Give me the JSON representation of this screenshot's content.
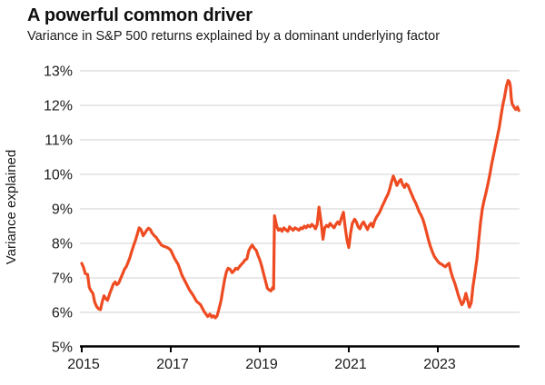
{
  "header": {
    "title": "A powerful common driver",
    "subtitle": "Variance in S&P 500 returns explained by a dominant underlying factor"
  },
  "colors": {
    "line": "#EE4B22",
    "grid": "#d9d9d9",
    "axis": "#000000",
    "text": "#1a1a1a",
    "background": "#ffffff"
  },
  "chart_data": {
    "type": "line",
    "title": "A powerful common driver",
    "subtitle": "Variance in S&P 500 returns explained by a dominant underlying factor",
    "xlabel": "",
    "ylabel": "Variance explained",
    "ylim": [
      5,
      13
    ],
    "xlim": [
      2015,
      2024.85
    ],
    "grid": "horizontal-only",
    "legend": "none",
    "yticks": [
      {
        "value": 5,
        "label": "5%"
      },
      {
        "value": 6,
        "label": "6%"
      },
      {
        "value": 7,
        "label": "7%"
      },
      {
        "value": 8,
        "label": "8%"
      },
      {
        "value": 9,
        "label": "9%"
      },
      {
        "value": 10,
        "label": "10%"
      },
      {
        "value": 11,
        "label": "11%"
      },
      {
        "value": 12,
        "label": "12%"
      },
      {
        "value": 13,
        "label": "13%"
      }
    ],
    "xticks": [
      {
        "value": 2015,
        "label": "2015"
      },
      {
        "value": 2017,
        "label": "2017"
      },
      {
        "value": 2019,
        "label": "2019"
      },
      {
        "value": 2021,
        "label": "2021"
      },
      {
        "value": 2023,
        "label": "2023"
      }
    ],
    "series": [
      {
        "name": "Variance explained by a dominant underlying factor",
        "unit": "%",
        "points": [
          [
            2015.0,
            7.42
          ],
          [
            2015.04,
            7.3
          ],
          [
            2015.08,
            7.12
          ],
          [
            2015.13,
            7.1
          ],
          [
            2015.17,
            6.72
          ],
          [
            2015.21,
            6.62
          ],
          [
            2015.25,
            6.55
          ],
          [
            2015.29,
            6.3
          ],
          [
            2015.33,
            6.18
          ],
          [
            2015.38,
            6.1
          ],
          [
            2015.42,
            6.08
          ],
          [
            2015.46,
            6.3
          ],
          [
            2015.5,
            6.48
          ],
          [
            2015.54,
            6.4
          ],
          [
            2015.58,
            6.35
          ],
          [
            2015.63,
            6.55
          ],
          [
            2015.67,
            6.68
          ],
          [
            2015.71,
            6.82
          ],
          [
            2015.75,
            6.88
          ],
          [
            2015.79,
            6.8
          ],
          [
            2015.83,
            6.85
          ],
          [
            2015.88,
            7.0
          ],
          [
            2015.92,
            7.12
          ],
          [
            2015.96,
            7.25
          ],
          [
            2016.0,
            7.32
          ],
          [
            2016.04,
            7.45
          ],
          [
            2016.08,
            7.58
          ],
          [
            2016.13,
            7.8
          ],
          [
            2016.17,
            7.95
          ],
          [
            2016.21,
            8.1
          ],
          [
            2016.25,
            8.28
          ],
          [
            2016.29,
            8.45
          ],
          [
            2016.33,
            8.4
          ],
          [
            2016.38,
            8.22
          ],
          [
            2016.42,
            8.3
          ],
          [
            2016.46,
            8.38
          ],
          [
            2016.5,
            8.44
          ],
          [
            2016.54,
            8.4
          ],
          [
            2016.58,
            8.3
          ],
          [
            2016.63,
            8.22
          ],
          [
            2016.67,
            8.18
          ],
          [
            2016.71,
            8.1
          ],
          [
            2016.75,
            8.02
          ],
          [
            2016.79,
            7.95
          ],
          [
            2016.83,
            7.92
          ],
          [
            2016.88,
            7.9
          ],
          [
            2016.92,
            7.88
          ],
          [
            2016.96,
            7.85
          ],
          [
            2017.0,
            7.8
          ],
          [
            2017.08,
            7.58
          ],
          [
            2017.17,
            7.38
          ],
          [
            2017.25,
            7.08
          ],
          [
            2017.33,
            6.88
          ],
          [
            2017.42,
            6.65
          ],
          [
            2017.5,
            6.5
          ],
          [
            2017.58,
            6.32
          ],
          [
            2017.67,
            6.22
          ],
          [
            2017.75,
            6.02
          ],
          [
            2017.83,
            5.88
          ],
          [
            2017.88,
            5.95
          ],
          [
            2017.92,
            5.86
          ],
          [
            2017.96,
            5.9
          ],
          [
            2018.0,
            5.84
          ],
          [
            2018.04,
            5.9
          ],
          [
            2018.08,
            6.08
          ],
          [
            2018.13,
            6.35
          ],
          [
            2018.17,
            6.65
          ],
          [
            2018.21,
            6.95
          ],
          [
            2018.25,
            7.18
          ],
          [
            2018.29,
            7.28
          ],
          [
            2018.33,
            7.25
          ],
          [
            2018.38,
            7.15
          ],
          [
            2018.42,
            7.2
          ],
          [
            2018.46,
            7.28
          ],
          [
            2018.5,
            7.25
          ],
          [
            2018.54,
            7.32
          ],
          [
            2018.58,
            7.38
          ],
          [
            2018.63,
            7.45
          ],
          [
            2018.67,
            7.52
          ],
          [
            2018.71,
            7.55
          ],
          [
            2018.75,
            7.78
          ],
          [
            2018.79,
            7.88
          ],
          [
            2018.83,
            7.95
          ],
          [
            2018.88,
            7.85
          ],
          [
            2018.92,
            7.8
          ],
          [
            2018.96,
            7.65
          ],
          [
            2019.0,
            7.52
          ],
          [
            2019.04,
            7.35
          ],
          [
            2019.08,
            7.15
          ],
          [
            2019.13,
            6.9
          ],
          [
            2019.17,
            6.7
          ],
          [
            2019.21,
            6.65
          ],
          [
            2019.25,
            6.62
          ],
          [
            2019.29,
            6.72
          ],
          [
            2019.31,
            6.68
          ],
          [
            2019.33,
            8.8
          ],
          [
            2019.38,
            8.5
          ],
          [
            2019.42,
            8.38
          ],
          [
            2019.46,
            8.42
          ],
          [
            2019.5,
            8.35
          ],
          [
            2019.54,
            8.45
          ],
          [
            2019.58,
            8.4
          ],
          [
            2019.63,
            8.35
          ],
          [
            2019.67,
            8.48
          ],
          [
            2019.71,
            8.42
          ],
          [
            2019.75,
            8.38
          ],
          [
            2019.79,
            8.45
          ],
          [
            2019.83,
            8.42
          ],
          [
            2019.88,
            8.38
          ],
          [
            2019.92,
            8.45
          ],
          [
            2019.96,
            8.42
          ],
          [
            2020.0,
            8.5
          ],
          [
            2020.04,
            8.45
          ],
          [
            2020.08,
            8.52
          ],
          [
            2020.13,
            8.48
          ],
          [
            2020.17,
            8.55
          ],
          [
            2020.21,
            8.5
          ],
          [
            2020.25,
            8.42
          ],
          [
            2020.29,
            8.55
          ],
          [
            2020.33,
            9.05
          ],
          [
            2020.38,
            8.6
          ],
          [
            2020.42,
            8.12
          ],
          [
            2020.46,
            8.45
          ],
          [
            2020.5,
            8.52
          ],
          [
            2020.54,
            8.48
          ],
          [
            2020.58,
            8.58
          ],
          [
            2020.63,
            8.5
          ],
          [
            2020.67,
            8.45
          ],
          [
            2020.71,
            8.55
          ],
          [
            2020.75,
            8.62
          ],
          [
            2020.79,
            8.55
          ],
          [
            2020.83,
            8.72
          ],
          [
            2020.88,
            8.9
          ],
          [
            2020.92,
            8.45
          ],
          [
            2020.96,
            8.1
          ],
          [
            2021.0,
            7.88
          ],
          [
            2021.04,
            8.3
          ],
          [
            2021.08,
            8.58
          ],
          [
            2021.13,
            8.7
          ],
          [
            2021.17,
            8.62
          ],
          [
            2021.21,
            8.48
          ],
          [
            2021.25,
            8.42
          ],
          [
            2021.29,
            8.55
          ],
          [
            2021.33,
            8.62
          ],
          [
            2021.38,
            8.5
          ],
          [
            2021.42,
            8.4
          ],
          [
            2021.46,
            8.52
          ],
          [
            2021.5,
            8.58
          ],
          [
            2021.54,
            8.48
          ],
          [
            2021.58,
            8.65
          ],
          [
            2021.63,
            8.78
          ],
          [
            2021.67,
            8.85
          ],
          [
            2021.71,
            8.95
          ],
          [
            2021.75,
            9.08
          ],
          [
            2021.79,
            9.18
          ],
          [
            2021.83,
            9.3
          ],
          [
            2021.88,
            9.42
          ],
          [
            2021.92,
            9.58
          ],
          [
            2021.96,
            9.78
          ],
          [
            2022.0,
            9.95
          ],
          [
            2022.04,
            9.82
          ],
          [
            2022.08,
            9.68
          ],
          [
            2022.13,
            9.8
          ],
          [
            2022.17,
            9.85
          ],
          [
            2022.21,
            9.7
          ],
          [
            2022.25,
            9.62
          ],
          [
            2022.29,
            9.72
          ],
          [
            2022.33,
            9.68
          ],
          [
            2022.38,
            9.52
          ],
          [
            2022.42,
            9.4
          ],
          [
            2022.46,
            9.28
          ],
          [
            2022.5,
            9.18
          ],
          [
            2022.54,
            9.05
          ],
          [
            2022.58,
            8.92
          ],
          [
            2022.63,
            8.8
          ],
          [
            2022.67,
            8.68
          ],
          [
            2022.71,
            8.5
          ],
          [
            2022.75,
            8.3
          ],
          [
            2022.79,
            8.1
          ],
          [
            2022.83,
            7.92
          ],
          [
            2022.88,
            7.75
          ],
          [
            2022.92,
            7.62
          ],
          [
            2022.96,
            7.55
          ],
          [
            2023.0,
            7.48
          ],
          [
            2023.04,
            7.42
          ],
          [
            2023.08,
            7.4
          ],
          [
            2023.13,
            7.35
          ],
          [
            2023.17,
            7.32
          ],
          [
            2023.21,
            7.38
          ],
          [
            2023.25,
            7.42
          ],
          [
            2023.29,
            7.2
          ],
          [
            2023.33,
            7.02
          ],
          [
            2023.38,
            6.85
          ],
          [
            2023.42,
            6.68
          ],
          [
            2023.46,
            6.5
          ],
          [
            2023.5,
            6.35
          ],
          [
            2023.54,
            6.22
          ],
          [
            2023.58,
            6.3
          ],
          [
            2023.63,
            6.55
          ],
          [
            2023.67,
            6.35
          ],
          [
            2023.71,
            6.15
          ],
          [
            2023.75,
            6.28
          ],
          [
            2023.79,
            6.75
          ],
          [
            2023.83,
            7.1
          ],
          [
            2023.88,
            7.55
          ],
          [
            2023.92,
            8.1
          ],
          [
            2023.96,
            8.6
          ],
          [
            2024.0,
            9.0
          ],
          [
            2024.04,
            9.25
          ],
          [
            2024.08,
            9.45
          ],
          [
            2024.13,
            9.75
          ],
          [
            2024.17,
            10.0
          ],
          [
            2024.21,
            10.3
          ],
          [
            2024.25,
            10.55
          ],
          [
            2024.29,
            10.8
          ],
          [
            2024.33,
            11.05
          ],
          [
            2024.38,
            11.35
          ],
          [
            2024.42,
            11.7
          ],
          [
            2024.46,
            12.0
          ],
          [
            2024.5,
            12.25
          ],
          [
            2024.54,
            12.55
          ],
          [
            2024.58,
            12.72
          ],
          [
            2024.61,
            12.68
          ],
          [
            2024.63,
            12.55
          ],
          [
            2024.65,
            12.2
          ],
          [
            2024.67,
            12.05
          ],
          [
            2024.71,
            11.95
          ],
          [
            2024.75,
            11.88
          ],
          [
            2024.79,
            11.95
          ],
          [
            2024.82,
            11.85
          ]
        ]
      }
    ]
  }
}
